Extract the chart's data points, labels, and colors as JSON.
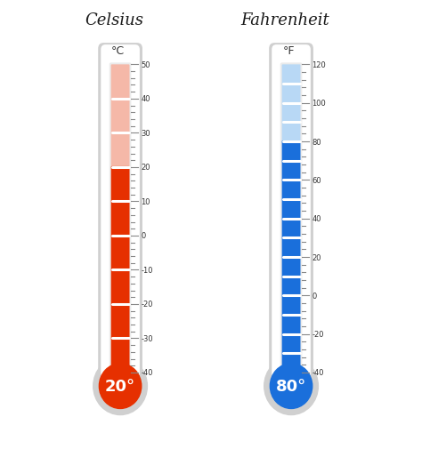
{
  "bg_color": "#ffffff",
  "title_celsius": "Celsius",
  "title_fahrenheit": "Fahrenheit",
  "unit_celsius": "°C",
  "unit_fahrenheit": "°F",
  "celsius_value": "20°",
  "fahrenheit_value": "80°",
  "celsius_color_hot": "#e63000",
  "celsius_color_warm": "#f5b8a8",
  "fahrenheit_color_hot": "#1a6fdb",
  "fahrenheit_color_light": "#b8d8f5",
  "celsius_ticks": [
    -40,
    -30,
    -20,
    -10,
    0,
    10,
    20,
    30,
    40,
    50
  ],
  "fahrenheit_ticks": [
    -40,
    -20,
    0,
    20,
    40,
    60,
    80,
    100,
    120
  ],
  "celsius_min": -40,
  "celsius_max": 50,
  "celsius_current": 20,
  "fahrenheit_min": -40,
  "fahrenheit_max": 120,
  "fahrenheit_current": 80,
  "shadow_color": "#d0d0d0",
  "white_color": "#ffffff",
  "tube_bg": "#ebebeb",
  "tick_color": "#888888",
  "label_color": "#333333"
}
